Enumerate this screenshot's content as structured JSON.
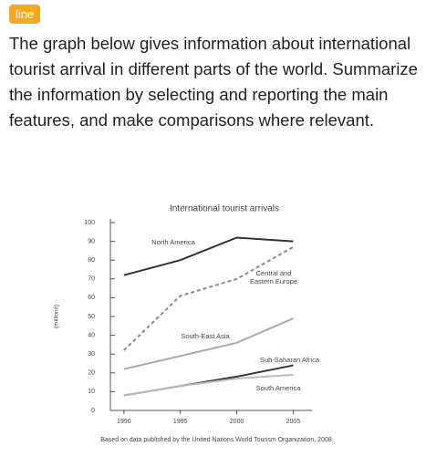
{
  "tag": "line",
  "prompt": "The graph below gives information about international tourist arrival in different parts of the world. Summarize the information by selecting and reporting the main features, and make comparisons where relevant.",
  "chart_data": {
    "type": "line",
    "title": "International tourist arrivals",
    "y_label": "(millions)",
    "source": "Based on data published by the United Nations World Tourism Organization, 2008.",
    "x": [
      1990,
      1995,
      2000,
      2005
    ],
    "xlim": [
      1988.8,
      2006.5
    ],
    "xticks": [
      1990,
      1995,
      2000,
      2005
    ],
    "ylim": [
      0,
      100
    ],
    "yticks": [
      0,
      10,
      20,
      30,
      40,
      50,
      60,
      70,
      80,
      90,
      100
    ],
    "grid": false,
    "series": [
      {
        "name": "North America",
        "color": "#333333",
        "dashed": false,
        "values": [
          72,
          80,
          92,
          90
        ]
      },
      {
        "name": "Central and Eastern Europe",
        "color": "#8a8a8a",
        "dashed": true,
        "values": [
          32,
          61,
          70,
          87
        ]
      },
      {
        "name": "South-East Asia",
        "color": "#aaaaaa",
        "dashed": false,
        "values": [
          22,
          29,
          36,
          49
        ]
      },
      {
        "name": "Sub-Saharan Africa",
        "color": "#333333",
        "dashed": false,
        "values": [
          8,
          13,
          18,
          24
        ]
      },
      {
        "name": "South America",
        "color": "#bbbbbb",
        "dashed": false,
        "values": [
          8,
          13,
          17,
          19
        ]
      }
    ]
  }
}
